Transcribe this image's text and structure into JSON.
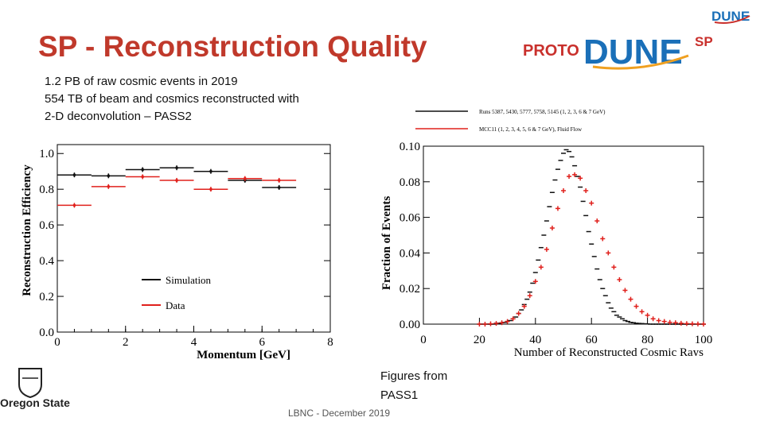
{
  "slide": {
    "title": "SP - Reconstruction Quality",
    "bullets": [
      "1.2 PB of  raw cosmic events in 2019",
      "554 TB of beam and cosmics reconstructed with",
      "2-D deconvolution – PASS2"
    ],
    "figures_caption": [
      "Figures from",
      "PASS1"
    ],
    "footer": "LBNC - December 2019",
    "logo": {
      "word1": "PROTO",
      "word2": "DUNE",
      "word3": "SP"
    },
    "corner_logo": "DUNE",
    "institution": "Oregon State"
  },
  "colors": {
    "title": "#c0392b",
    "data_red": "#e0201c",
    "sim_black": "#111111",
    "logo_red": "#c9302c",
    "logo_blue": "#1a6fb8",
    "osu_text": "#222222"
  },
  "chart_data": [
    {
      "type": "scatter",
      "title": "",
      "xlabel": "Momentum [GeV]",
      "ylabel": "Reconstruction Efficiency",
      "xlim": [
        0,
        8
      ],
      "ylim": [
        0.0,
        1.05
      ],
      "xticks": [
        "0",
        "2",
        "4",
        "6",
        "8"
      ],
      "yticks": [
        "0.0",
        "0.2",
        "0.4",
        "0.6",
        "0.8",
        "1.0"
      ],
      "legend": {
        "position": "lower-center",
        "entries": [
          "Simulation",
          "Data"
        ]
      },
      "series": [
        {
          "name": "Simulation",
          "color": "#111111",
          "points": [
            {
              "x": 0.5,
              "xlo": 0,
              "xhi": 1,
              "y": 0.88
            },
            {
              "x": 1.5,
              "xlo": 1,
              "xhi": 2,
              "y": 0.875
            },
            {
              "x": 2.5,
              "xlo": 2,
              "xhi": 3,
              "y": 0.91
            },
            {
              "x": 3.5,
              "xlo": 3,
              "xhi": 4,
              "y": 0.92
            },
            {
              "x": 4.5,
              "xlo": 4,
              "xhi": 5,
              "y": 0.9
            },
            {
              "x": 5.5,
              "xlo": 5,
              "xhi": 6,
              "y": 0.85
            },
            {
              "x": 6.5,
              "xlo": 6,
              "xhi": 7,
              "y": 0.81
            }
          ]
        },
        {
          "name": "Data",
          "color": "#e0201c",
          "points": [
            {
              "x": 0.5,
              "xlo": 0,
              "xhi": 1,
              "y": 0.71
            },
            {
              "x": 1.5,
              "xlo": 1,
              "xhi": 2,
              "y": 0.815
            },
            {
              "x": 2.5,
              "xlo": 2,
              "xhi": 3,
              "y": 0.87
            },
            {
              "x": 3.5,
              "xlo": 3,
              "xhi": 4,
              "y": 0.85
            },
            {
              "x": 4.5,
              "xlo": 4,
              "xhi": 5,
              "y": 0.8
            },
            {
              "x": 5.5,
              "xlo": 5,
              "xhi": 6,
              "y": 0.86
            },
            {
              "x": 6.5,
              "xlo": 6,
              "xhi": 7,
              "y": 0.85
            }
          ]
        }
      ]
    },
    {
      "type": "scatter",
      "title": "",
      "xlabel": "Number of Reconstructed Cosmic Rays",
      "ylabel": "Fraction of Events",
      "xlim": [
        0,
        100
      ],
      "ylim": [
        0.0,
        0.1
      ],
      "xticks": [
        "0",
        "20",
        "40",
        "60",
        "80",
        "100"
      ],
      "yticks": [
        "0.00",
        "0.02",
        "0.04",
        "0.06",
        "0.08",
        "0.10"
      ],
      "legend": {
        "position": "top",
        "entries": [
          "Runs 5387, 5430, 5777, 5758, 5145 (1, 2, 3, 6 & 7 GeV)",
          "MCC11 (1, 2, 3, 4, 5, 6 & 7 GeV), Fluid Flow"
        ]
      },
      "series": [
        {
          "name": "Runs 5387, 5430, 5777, 5758, 5145 (1, 2, 3, 6 & 7 GeV)",
          "color": "#111111",
          "x": [
            20,
            21,
            22,
            23,
            24,
            25,
            26,
            27,
            28,
            29,
            30,
            31,
            32,
            33,
            34,
            35,
            36,
            37,
            38,
            39,
            40,
            41,
            42,
            43,
            44,
            45,
            46,
            47,
            48,
            49,
            50,
            51,
            52,
            53,
            54,
            55,
            56,
            57,
            58,
            59,
            60,
            61,
            62,
            63,
            64,
            65,
            66,
            67,
            68,
            69,
            70,
            71,
            72,
            73,
            74,
            75,
            76,
            77,
            78,
            79,
            80,
            81,
            82,
            83,
            84,
            85,
            86,
            87,
            88,
            89,
            90,
            91,
            92,
            93,
            94,
            95,
            96,
            97,
            98,
            99,
            100
          ],
          "y": [
            0.0,
            0.0,
            0.0,
            0.0,
            0.0,
            0.0,
            0.0005,
            0.0005,
            0.0008,
            0.001,
            0.0015,
            0.002,
            0.003,
            0.004,
            0.006,
            0.008,
            0.011,
            0.014,
            0.018,
            0.023,
            0.029,
            0.036,
            0.043,
            0.05,
            0.058,
            0.066,
            0.074,
            0.081,
            0.087,
            0.092,
            0.096,
            0.098,
            0.097,
            0.094,
            0.089,
            0.083,
            0.077,
            0.069,
            0.061,
            0.052,
            0.045,
            0.038,
            0.031,
            0.025,
            0.02,
            0.016,
            0.012,
            0.009,
            0.007,
            0.005,
            0.004,
            0.003,
            0.002,
            0.0015,
            0.001,
            0.0008,
            0.0005,
            0.0004,
            0.0003,
            0.0002,
            0.0001,
            0.0,
            0.0,
            0.0,
            0.0,
            0.0,
            0.0,
            0.0,
            0.0,
            0.0,
            0.0,
            0.0,
            0.0,
            0.0,
            0.0,
            0.0,
            0.0,
            0.0,
            0.0,
            0.0,
            0.0
          ]
        },
        {
          "name": "MCC11 (1, 2, 3, 4, 5, 6 & 7 GeV), Fluid Flow",
          "color": "#e0201c",
          "x": [
            20,
            22,
            24,
            26,
            28,
            30,
            32,
            34,
            36,
            38,
            40,
            42,
            44,
            46,
            48,
            50,
            52,
            54,
            56,
            58,
            60,
            62,
            64,
            66,
            68,
            70,
            72,
            74,
            76,
            78,
            80,
            82,
            84,
            86,
            88,
            90,
            92,
            94,
            96,
            98,
            100
          ],
          "y": [
            0.0,
            0.0,
            0.0002,
            0.0004,
            0.0008,
            0.0015,
            0.003,
            0.006,
            0.01,
            0.016,
            0.024,
            0.032,
            0.042,
            0.054,
            0.065,
            0.075,
            0.083,
            0.084,
            0.082,
            0.075,
            0.068,
            0.058,
            0.048,
            0.04,
            0.032,
            0.025,
            0.019,
            0.014,
            0.01,
            0.007,
            0.005,
            0.003,
            0.002,
            0.0015,
            0.001,
            0.0008,
            0.0005,
            0.0003,
            0.0002,
            0.0001,
            0.0
          ]
        }
      ]
    }
  ]
}
